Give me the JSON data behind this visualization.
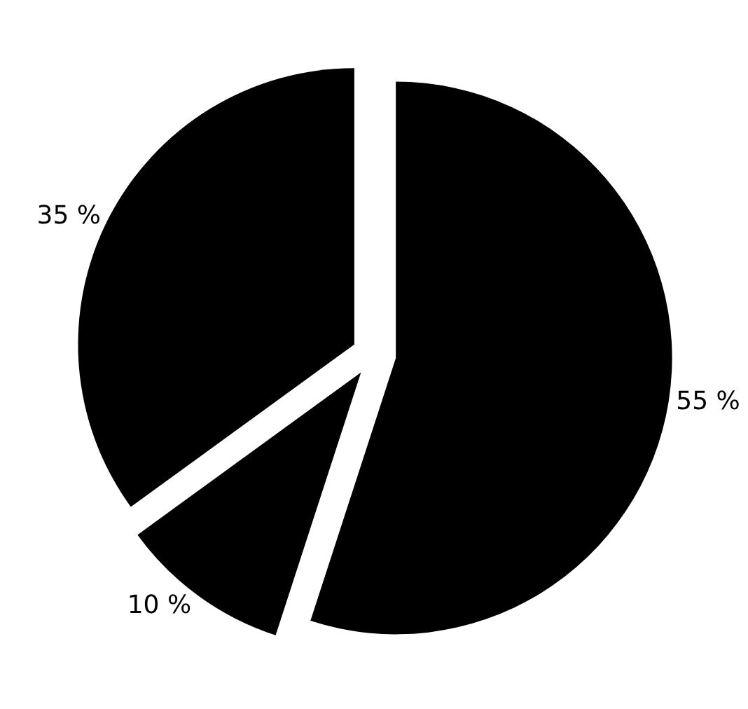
{
  "chart_data": {
    "type": "pie",
    "categories": [
      null,
      null,
      null
    ],
    "values": [
      55,
      10,
      35
    ],
    "colors": [
      "#000000",
      "#000000",
      "#000000"
    ],
    "value_labels": [
      "55 %",
      "10 %",
      "35 %"
    ],
    "legend": false
  }
}
